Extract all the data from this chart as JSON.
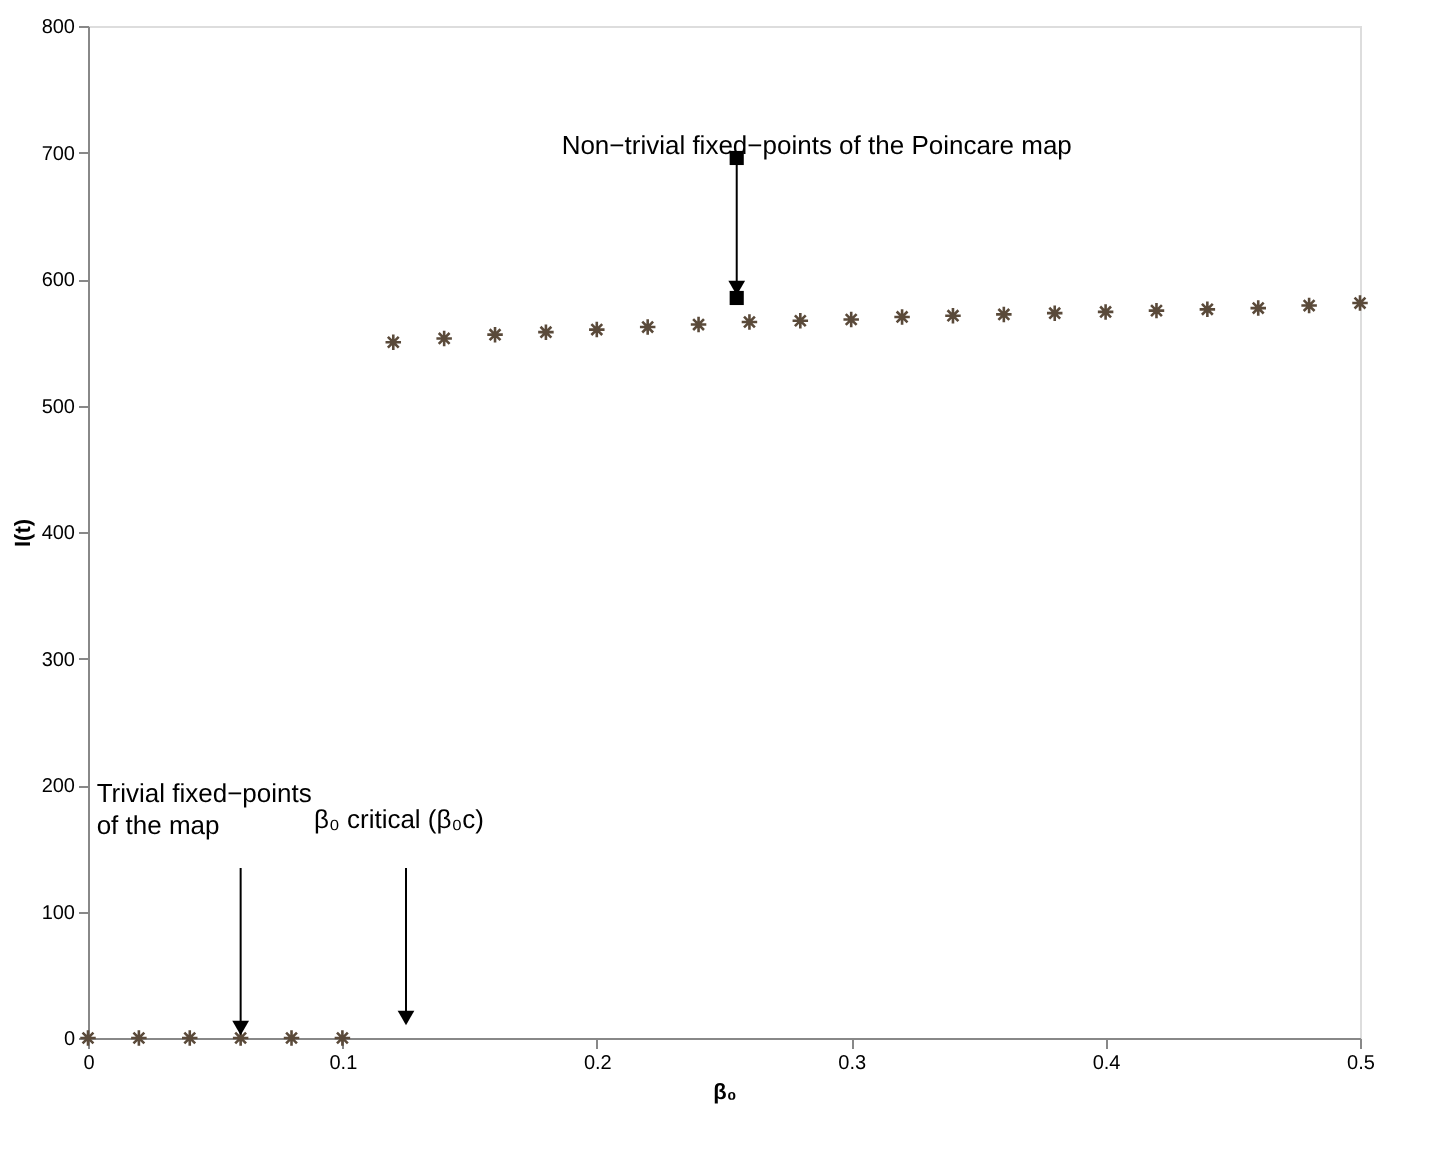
{
  "chart_data": {
    "type": "scatter",
    "xlabel": "β₀",
    "ylabel": "I(t)",
    "x": [
      0,
      0.02,
      0.04,
      0.06,
      0.08,
      0.1,
      0.12,
      0.14,
      0.16,
      0.18,
      0.2,
      0.22,
      0.24,
      0.26,
      0.28,
      0.3,
      0.32,
      0.34,
      0.36,
      0.38,
      0.4,
      0.42,
      0.44,
      0.46,
      0.48,
      0.5
    ],
    "series": [
      {
        "color": "#5a4a3a",
        "values": [
          0,
          0,
          0,
          0,
          0,
          0,
          550,
          553,
          556,
          558,
          560,
          562,
          564,
          566,
          567,
          568,
          570,
          571,
          572,
          573,
          574,
          575,
          576,
          577,
          579,
          581
        ]
      }
    ],
    "marker": "cross",
    "grid": false,
    "xlim": [
      0,
      0.5
    ],
    "xticks": [
      0,
      0.1,
      0.2,
      0.3,
      0.4,
      0.5
    ],
    "ylim": [
      0,
      800
    ],
    "yticks": [
      0,
      100,
      200,
      300,
      400,
      500,
      600,
      700,
      800
    ],
    "annotations": [
      {
        "text": "Non−trivial fixed−points of the Poincare map",
        "x": 0.255,
        "y": 585
      },
      {
        "text": "Trivial fixed−points\nof the map",
        "x": 0.06,
        "y": 0
      },
      "β₀ critical (β₀c)"
    ]
  }
}
